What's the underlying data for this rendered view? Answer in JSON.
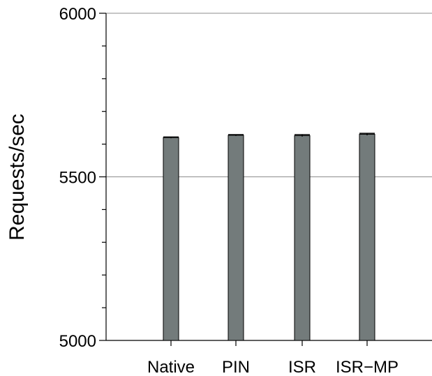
{
  "chart_data": {
    "type": "bar",
    "title": "",
    "xlabel": "",
    "ylabel": "Requests/sec",
    "categories": [
      "Native",
      "PIN",
      "ISR",
      "ISR−MP"
    ],
    "values": [
      5620,
      5627,
      5626,
      5630
    ],
    "errors": [
      2,
      2,
      3,
      3
    ],
    "ylim": [
      5000,
      6000
    ],
    "yticks": [
      5000,
      5500,
      6000
    ],
    "ytick_labels": [
      "5000",
      "5500",
      "6000"
    ],
    "minor_step": 100,
    "grid": true,
    "bar_color": "#737b7b",
    "legend": "none"
  }
}
